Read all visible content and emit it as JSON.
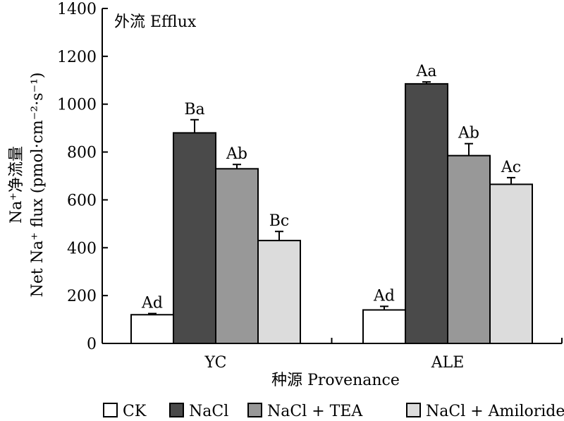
{
  "chart_data": {
    "type": "bar",
    "annotation": "外流 Efflux",
    "xlabel": "种源 Provenance",
    "ylabel_line1": "Na⁺净流量",
    "ylabel_line2": "Net Na⁺ flux (pmol·cm⁻²·s⁻¹)",
    "ylim": [
      0,
      1400
    ],
    "yticks": [
      "0",
      "200",
      "400",
      "600",
      "800",
      "1000",
      "1200",
      "1400"
    ],
    "categories": [
      "YC",
      "ALE"
    ],
    "series": [
      {
        "name": "CK",
        "color": "#ffffff",
        "values": [
          120,
          140
        ],
        "errors": [
          5,
          15
        ],
        "labels": [
          "Ad",
          "Ad"
        ]
      },
      {
        "name": "NaCl",
        "color": "#4a4a4a",
        "values": [
          880,
          1085
        ],
        "errors": [
          55,
          8
        ],
        "labels": [
          "Ba",
          "Aa"
        ]
      },
      {
        "name": "NaCl + TEA",
        "color": "#989898",
        "values": [
          730,
          785
        ],
        "errors": [
          18,
          50
        ],
        "labels": [
          "Ab",
          "Ab"
        ]
      },
      {
        "name": "NaCl + Amiloride",
        "color": "#dcdcdc",
        "values": [
          430,
          665
        ],
        "errors": [
          38,
          28
        ],
        "labels": [
          "Bc",
          "Ac"
        ]
      }
    ],
    "grid": false,
    "legend_position": "bottom"
  }
}
